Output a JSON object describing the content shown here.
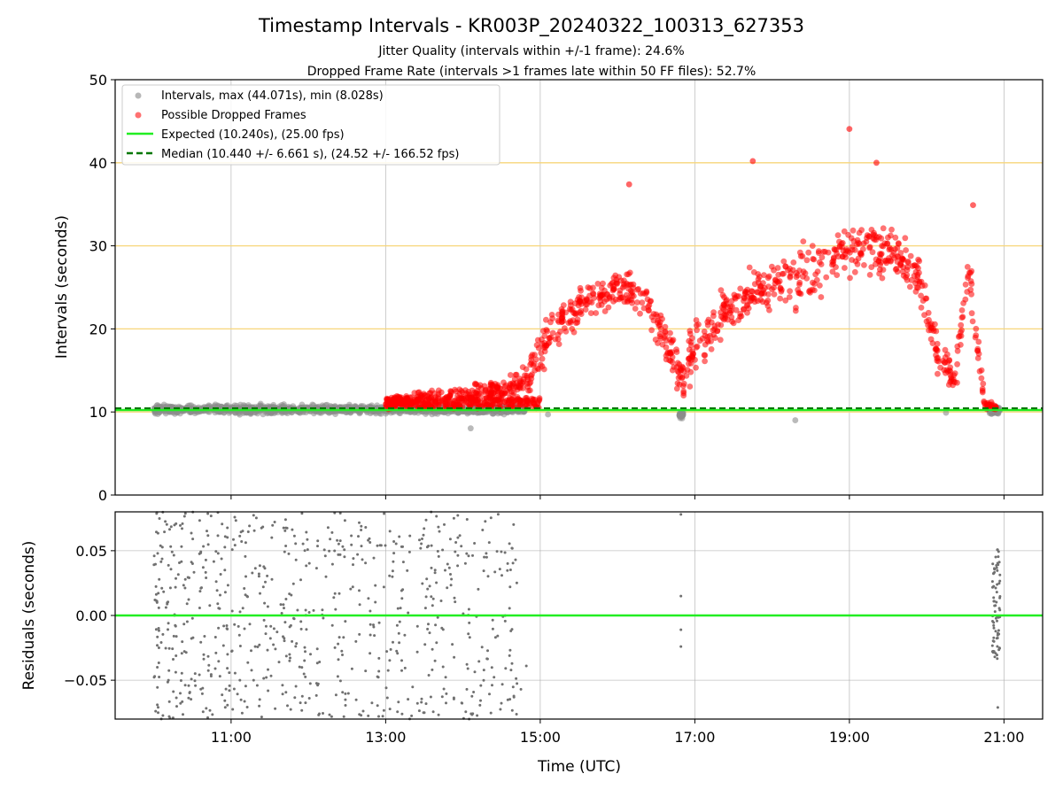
{
  "figure": {
    "title": "Timestamp Intervals - KR003P_20240322_100313_627353",
    "subtitle_1": "Jitter Quality (intervals within +/-1 frame): 24.6%",
    "subtitle_2": "Dropped Frame Rate (intervals >1 frames late within 50 FF files): 52.7%"
  },
  "chart_data": [
    {
      "type": "scatter",
      "panel": "intervals",
      "ylabel": "Intervals (seconds)",
      "xlabel": "",
      "ylim": [
        0,
        50
      ],
      "yticks": [
        "0",
        "10",
        "20",
        "30",
        "40",
        "50"
      ],
      "xticks": [
        "11:00",
        "13:00",
        "15:00",
        "17:00",
        "19:00",
        "21:00"
      ],
      "xlim_hours": [
        9.5,
        21.5
      ],
      "grid": true,
      "legend_position": "top-left",
      "reference_lines": [
        10,
        20,
        30,
        40
      ],
      "reference_line_color": "#f7d67a",
      "expected_value": 10.24,
      "median_value": 10.44,
      "max_interval": 44.071,
      "min_interval": 8.028,
      "legend": [
        {
          "label": "Intervals, max (44.071s), min (8.028s)",
          "style": "marker",
          "color": "#999999"
        },
        {
          "label": "Possible Dropped Frames",
          "style": "marker",
          "color": "#ff4d4d"
        },
        {
          "label": "Expected (10.240s), (25.00 fps)",
          "style": "line",
          "color": "#22ee22"
        },
        {
          "label": "Median (10.440 +/- 6.661 s), (24.52 +/- 166.52 fps)",
          "style": "dashed",
          "color": "#007700"
        }
      ],
      "series": [
        {
          "name": "Intervals, max (44.071s), min (8.028s)",
          "color": "#8c8c8c",
          "segments": [
            {
              "x_range": [
                10.0,
                14.8
              ],
              "y_center": 10.3,
              "spread": 0.9
            },
            {
              "x_range": [
                16.8,
                16.85
              ],
              "y_center": 9.6,
              "spread": 0.8
            },
            {
              "x_range": [
                20.8,
                20.95
              ],
              "y_center": 10.2,
              "spread": 0.7
            }
          ],
          "points": [
            {
              "x": 14.1,
              "y": 8.03
            },
            {
              "x": 18.3,
              "y": 9.0
            },
            {
              "x": 15.1,
              "y": 9.7
            },
            {
              "x": 20.25,
              "y": 9.9
            }
          ]
        },
        {
          "name": "Possible Dropped Frames",
          "color": "#ff0000",
          "profile": [
            [
              13.0,
              11.0,
              1.2
            ],
            [
              13.5,
              11.5,
              1.6
            ],
            [
              14.0,
              12.0,
              2.0
            ],
            [
              14.5,
              12.5,
              2.2
            ],
            [
              14.8,
              13.5,
              3.0
            ],
            [
              15.0,
              17.0,
              4.5
            ],
            [
              15.3,
              21.0,
              4.0
            ],
            [
              15.6,
              23.5,
              3.5
            ],
            [
              16.0,
              25.0,
              3.0
            ],
            [
              16.3,
              24.5,
              3.5
            ],
            [
              16.6,
              19.0,
              4.5
            ],
            [
              16.85,
              13.5,
              3.5
            ],
            [
              17.0,
              18.0,
              4.5
            ],
            [
              17.4,
              22.0,
              4.0
            ],
            [
              17.8,
              24.5,
              4.0
            ],
            [
              18.2,
              26.5,
              4.5
            ],
            [
              18.5,
              26.0,
              5.0
            ],
            [
              18.8,
              29.0,
              4.5
            ],
            [
              19.2,
              30.0,
              4.5
            ],
            [
              19.6,
              29.0,
              4.0
            ],
            [
              19.9,
              26.0,
              4.0
            ],
            [
              20.15,
              17.0,
              3.5
            ],
            [
              20.35,
              14.0,
              3.0
            ],
            [
              20.55,
              27.0,
              5.0
            ],
            [
              20.75,
              11.0,
              1.0
            ],
            [
              20.9,
              10.5,
              0.6
            ]
          ],
          "points": [
            {
              "x": 19.0,
              "y": 44.07
            },
            {
              "x": 17.75,
              "y": 40.2
            },
            {
              "x": 19.35,
              "y": 40.0
            },
            {
              "x": 16.15,
              "y": 37.4
            },
            {
              "x": 20.6,
              "y": 34.9
            }
          ]
        }
      ]
    },
    {
      "type": "scatter",
      "panel": "residuals",
      "ylabel": "Residuals (seconds)",
      "xlabel": "Time (UTC)",
      "ylim": [
        -0.08,
        0.08
      ],
      "yticks": [
        "0.05",
        "0.00",
        "−0.05"
      ],
      "ytick_values": [
        0.05,
        0.0,
        -0.05
      ],
      "xticks": [
        "11:00",
        "13:00",
        "15:00",
        "17:00",
        "19:00",
        "21:00"
      ],
      "grid": true,
      "reference_value": 0.0,
      "series": [
        {
          "name": "",
          "color": "#707070",
          "segments": [
            {
              "x_range": [
                10.0,
                14.7
              ],
              "y_range": [
                -0.08,
                0.08
              ]
            },
            {
              "x_range": [
                20.85,
                20.95
              ],
              "y_range": [
                -0.035,
                0.052
              ]
            }
          ],
          "points": [
            {
              "x": 14.82,
              "y": -0.039
            },
            {
              "x": 14.75,
              "y": -0.057
            },
            {
              "x": 14.68,
              "y": 0.043
            },
            {
              "x": 14.62,
              "y": -0.012
            },
            {
              "x": 16.82,
              "y": 0.078
            },
            {
              "x": 16.82,
              "y": 0.015
            },
            {
              "x": 16.82,
              "y": -0.011
            },
            {
              "x": 16.82,
              "y": -0.024
            },
            {
              "x": 20.92,
              "y": -0.071
            }
          ]
        }
      ]
    }
  ]
}
